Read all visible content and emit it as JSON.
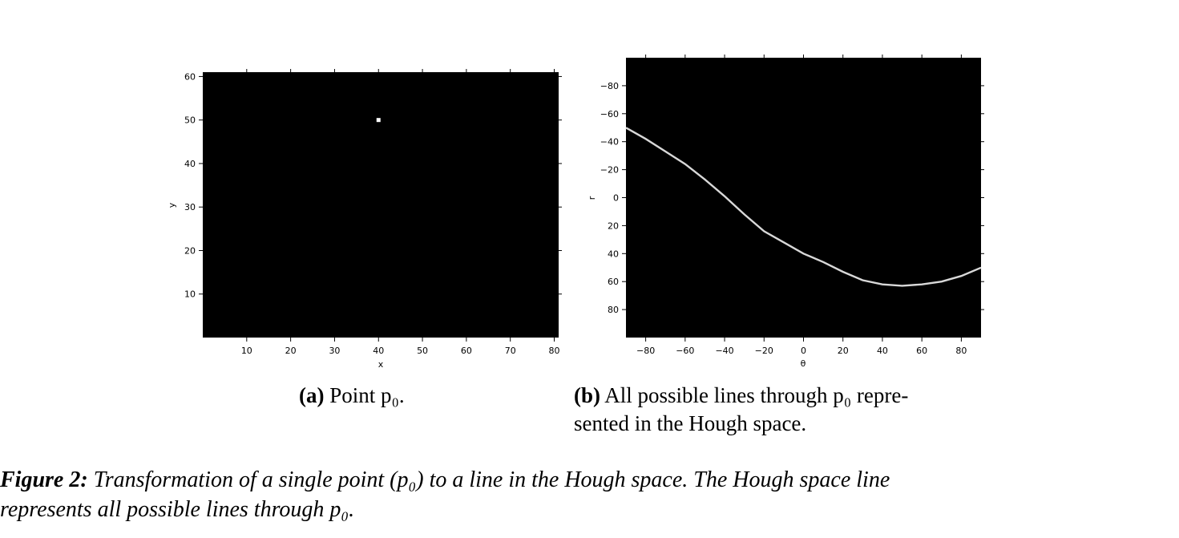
{
  "figure": {
    "label": "Figure 2:",
    "caption_line1": "Transformation of a single point (p₀) to a line in the Hough space.  The Hough space line",
    "caption_line2": "represents all possible lines through p₀."
  },
  "subfigures": [
    {
      "label": "(a)",
      "caption": "Point p₀."
    },
    {
      "label": "(b)",
      "caption_line1": "All possible lines through p₀ repre-",
      "caption_line2": "sented in the Hough space."
    }
  ],
  "chart_data": [
    {
      "type": "scatter",
      "background": "#000000",
      "point_color": "#ffffff",
      "xlabel": "x",
      "ylabel": "y",
      "xlim": [
        0,
        81
      ],
      "ylim": [
        0,
        61
      ],
      "xticks": [
        10,
        20,
        30,
        40,
        50,
        60,
        70,
        80
      ],
      "yticks": [
        10,
        20,
        30,
        40,
        50,
        60
      ],
      "points": [
        {
          "x": 40,
          "y": 50
        }
      ]
    },
    {
      "type": "line",
      "background": "#000000",
      "line_color": "#d8d8d8",
      "xlabel": "θ",
      "ylabel": "r",
      "xlim": [
        -90,
        90
      ],
      "ylim": [
        -100,
        100
      ],
      "y_inverted": true,
      "xticks": [
        -80,
        -60,
        -40,
        -20,
        0,
        20,
        40,
        60,
        80
      ],
      "yticks": [
        -80,
        -60,
        -40,
        -20,
        0,
        20,
        40,
        60,
        80
      ],
      "series": [
        {
          "x": [
            -90,
            -80,
            -70,
            -60,
            -50,
            -40,
            -30,
            -20,
            -10,
            0,
            10,
            20,
            30,
            40,
            50,
            60,
            70,
            80,
            90
          ],
          "values": [
            -50,
            -42,
            -33,
            -24,
            -13,
            -1,
            12,
            24,
            32,
            40,
            46,
            53,
            59,
            62,
            63,
            62,
            60,
            56,
            50
          ]
        }
      ]
    }
  ]
}
